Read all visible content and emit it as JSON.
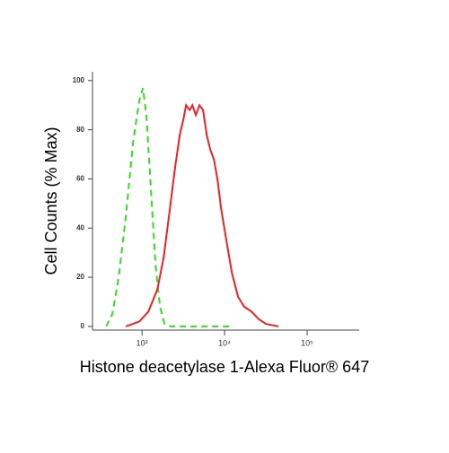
{
  "chart_data": {
    "type": "line",
    "xlabel": "Histone deacetylase 1-Alexa Fluor® 647",
    "ylabel": "Cell Counts (% Max)",
    "xscale": "log",
    "xlim": [
      251,
      427000
    ],
    "ylim": [
      -1.5,
      103.6
    ],
    "xticks": [
      {
        "value": 1000,
        "label": "10³"
      },
      {
        "value": 10000,
        "label": "10⁴"
      },
      {
        "value": 100000,
        "label": "10⁵"
      }
    ],
    "yticks": [
      0,
      20,
      40,
      60,
      80,
      100
    ],
    "series": [
      {
        "color": "#33dd22",
        "dashed": true,
        "x": [
          367,
          437,
          521,
          637,
          778,
          928,
          1025,
          1133,
          1285,
          1456,
          1649,
          1869,
          2228,
          12850
        ],
        "values": [
          0,
          5,
          20,
          45,
          75,
          92,
          97,
          85,
          55,
          25,
          8,
          1,
          0,
          0
        ]
      },
      {
        "color": "#ee2222",
        "dashed": false,
        "x": [
          637,
          928,
          1191,
          1531,
          1824,
          2120,
          2523,
          2863,
          3162,
          3411,
          3770,
          4063,
          4489,
          4963,
          5483,
          6067,
          6699,
          7413,
          8185,
          9057,
          10520,
          12210,
          14560,
          17340,
          21180,
          25880,
          31620,
          44870
        ],
        "values": [
          0,
          2,
          6,
          15,
          28,
          45,
          65,
          78,
          84,
          90,
          88,
          90,
          86,
          90,
          88,
          78,
          72,
          68,
          60,
          48,
          35,
          22,
          12,
          8,
          6,
          3,
          1,
          0
        ]
      }
    ]
  }
}
